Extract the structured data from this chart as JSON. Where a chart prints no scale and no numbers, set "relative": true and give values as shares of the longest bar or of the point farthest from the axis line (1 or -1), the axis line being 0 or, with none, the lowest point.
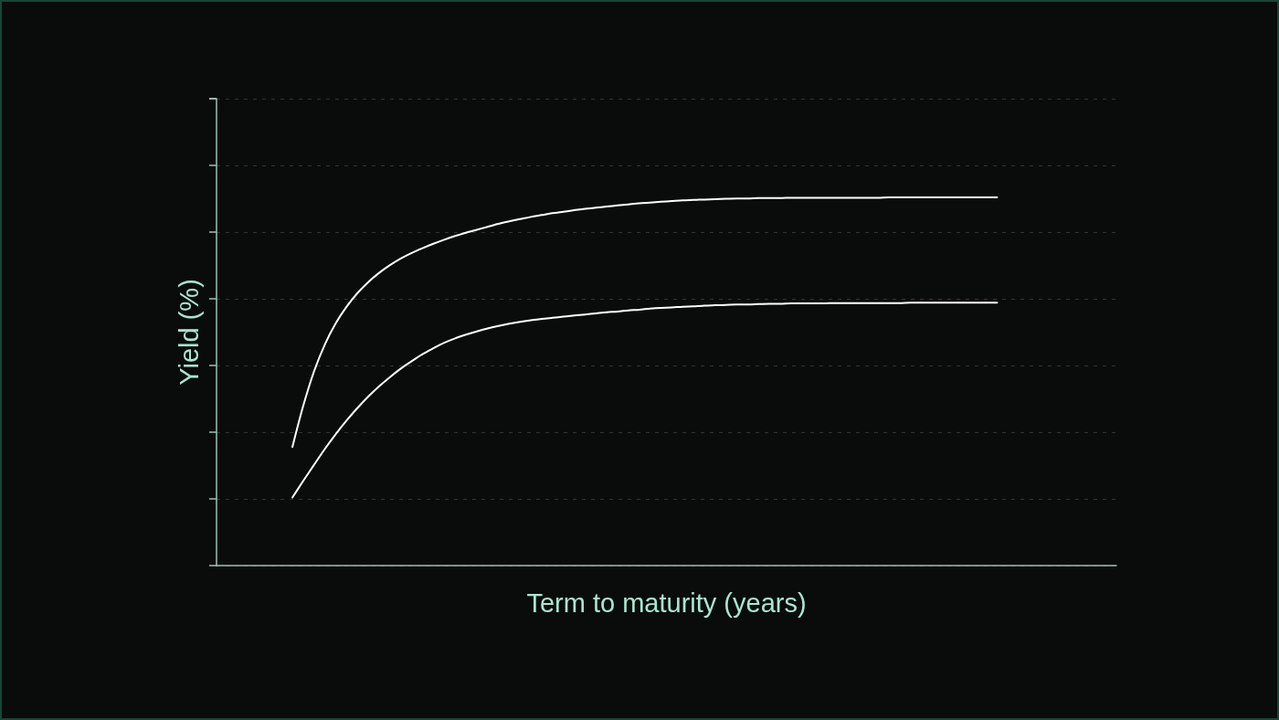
{
  "chart_data": {
    "type": "line",
    "xlabel": "Term to maturity (years)",
    "ylabel": "Yield (%)",
    "relative": true,
    "categories": [
      null,
      null,
      null,
      null,
      null,
      null,
      null,
      null,
      null,
      null,
      null,
      null,
      null,
      null,
      null,
      null,
      null,
      null,
      null,
      null,
      null,
      null,
      null,
      null,
      null,
      null,
      null,
      null,
      null,
      null,
      null,
      null,
      null,
      null,
      null,
      null,
      null,
      null,
      null,
      null,
      null,
      null,
      null,
      null,
      null,
      null,
      null,
      null,
      null,
      null,
      null,
      null,
      null,
      null,
      null,
      null,
      null,
      null,
      null,
      null,
      null,
      null,
      null,
      null,
      null,
      null,
      null,
      null,
      null,
      null,
      null,
      null,
      null,
      null,
      null,
      null,
      null,
      null,
      null,
      null,
      null,
      null,
      null,
      null
    ],
    "series": [
      {
        "color": "#ffffff",
        "values": [
          null,
          null,
          null,
          null,
          null,
          null,
          null,
          0.322,
          0.434,
          0.528,
          0.601,
          0.658,
          0.703,
          0.74,
          0.77,
          0.795,
          0.816,
          0.834,
          0.849,
          0.862,
          0.874,
          0.885,
          0.895,
          0.904,
          0.912,
          0.92,
          0.928,
          0.935,
          0.941,
          0.947,
          0.952,
          0.957,
          0.961,
          0.965,
          0.969,
          0.972,
          0.975,
          0.978,
          0.981,
          0.984,
          0.986,
          0.988,
          0.99,
          0.992,
          0.993,
          0.994,
          0.995,
          0.996,
          0.997,
          0.997,
          0.998,
          0.998,
          0.998,
          0.999,
          0.999,
          0.999,
          0.999,
          0.999,
          0.999,
          0.999,
          0.999,
          0.999,
          1.0,
          1.0,
          1.0,
          1.0,
          1.0,
          1.0,
          1.0,
          1.0,
          1.0,
          1.0,
          1.0,
          null,
          null,
          null,
          null,
          null,
          null,
          null,
          null,
          null,
          null,
          null
        ]
      },
      {
        "color": "#ffffff",
        "values": [
          null,
          null,
          null,
          null,
          null,
          null,
          null,
          0.185,
          0.23,
          0.274,
          0.317,
          0.357,
          0.394,
          0.428,
          0.459,
          0.487,
          0.512,
          0.535,
          0.555,
          0.574,
          0.59,
          0.605,
          0.617,
          0.627,
          0.636,
          0.644,
          0.651,
          0.657,
          0.662,
          0.666,
          0.67,
          0.673,
          0.676,
          0.679,
          0.682,
          0.685,
          0.688,
          0.69,
          0.693,
          0.695,
          0.698,
          0.7,
          0.701,
          0.703,
          0.704,
          0.706,
          0.707,
          0.708,
          0.709,
          0.709,
          0.71,
          0.711,
          0.711,
          0.712,
          0.712,
          0.712,
          0.712,
          0.713,
          0.713,
          0.713,
          0.713,
          0.713,
          0.713,
          0.713,
          0.714,
          0.714,
          0.714,
          0.714,
          0.714,
          0.714,
          0.714,
          0.714,
          0.714,
          null,
          null,
          null,
          null,
          null,
          null,
          null,
          null,
          null,
          null,
          null
        ]
      }
    ],
    "grid": "y",
    "marker": "none"
  }
}
